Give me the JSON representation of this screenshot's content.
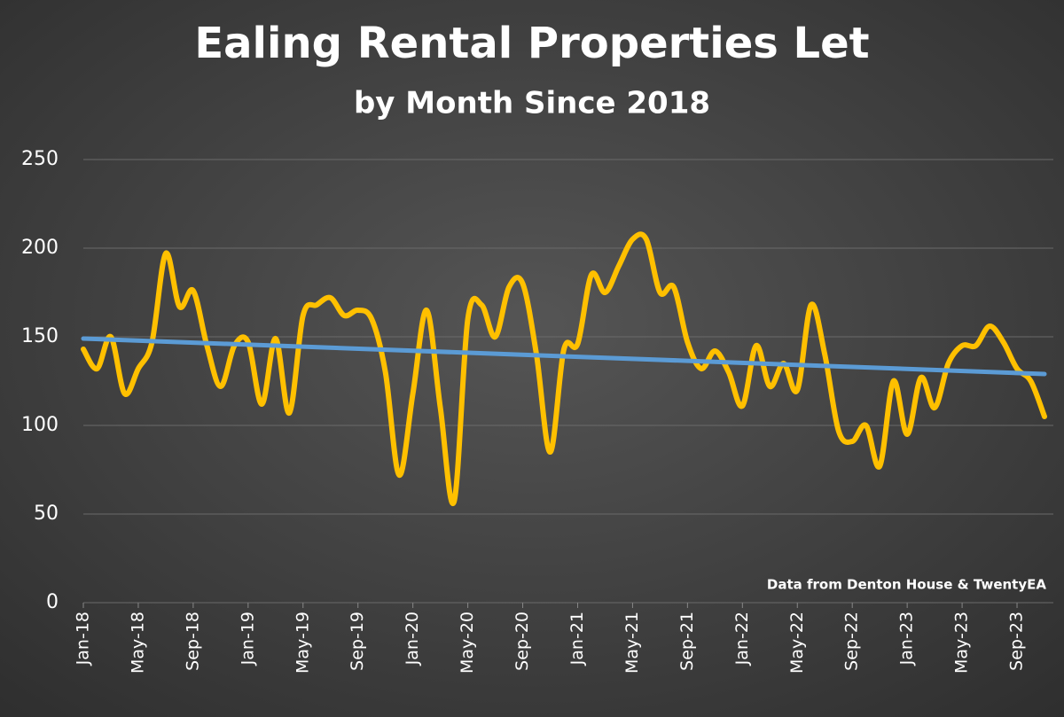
{
  "chart_data": {
    "type": "line",
    "title": "Ealing Rental Properties Let",
    "subtitle": "by Month Since 2018",
    "annotation": "Data from Denton House & TwentyEA",
    "categories": [
      "Jan-18",
      null,
      null,
      null,
      "May-18",
      null,
      null,
      null,
      "Sep-18",
      null,
      null,
      null,
      "Jan-19",
      null,
      null,
      null,
      "May-19",
      null,
      null,
      null,
      "Sep-19",
      null,
      null,
      null,
      "Jan-20",
      null,
      null,
      null,
      "May-20",
      null,
      null,
      null,
      "Sep-20",
      null,
      null,
      null,
      "Jan-21",
      null,
      null,
      null,
      "May-21",
      null,
      null,
      null,
      "Sep-21",
      null,
      null,
      null,
      "Jan-22",
      null,
      null,
      null,
      "May-22",
      null,
      null,
      null,
      "Sep-22",
      null,
      null,
      null,
      "Jan-23",
      null,
      null,
      null,
      "May-23",
      null,
      null,
      null,
      "Sep-23",
      null,
      null
    ],
    "series": [
      {
        "color": "#ffc000",
        "values": [
          143,
          132,
          150,
          118,
          132,
          147,
          197,
          167,
          176,
          145,
          122,
          145,
          147,
          112,
          149,
          107,
          162,
          168,
          172,
          162,
          165,
          160,
          130,
          72,
          118,
          165,
          110,
          57,
          160,
          168,
          150,
          178,
          180,
          140,
          85,
          143,
          146,
          185,
          175,
          190,
          205,
          205,
          175,
          178,
          147,
          132,
          142,
          130,
          111,
          145,
          122,
          135,
          120,
          168,
          140,
          97,
          91,
          100,
          77,
          125,
          95,
          127,
          110,
          135,
          145,
          145,
          156,
          147,
          132,
          125,
          105
        ]
      }
    ],
    "trend": {
      "color": "#5b9bd5",
      "values": [
        149,
        129
      ]
    },
    "ylim": [
      0,
      250
    ],
    "yticks": [
      0,
      50,
      100,
      150,
      200,
      250
    ],
    "grid": true
  }
}
